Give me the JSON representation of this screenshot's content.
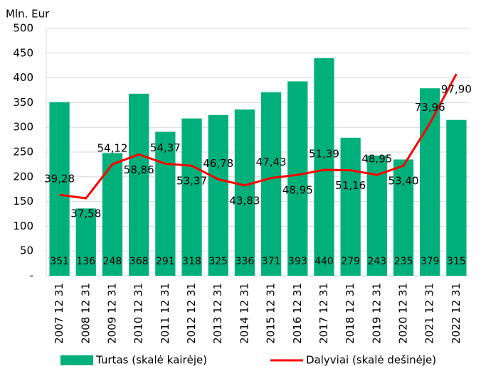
{
  "chart_data": {
    "type": "bar-line",
    "axis_title": "Mln. Eur",
    "categories": [
      "2007 12 31",
      "2008 12 31",
      "2009 12 31",
      "2010 12 31",
      "2011 12 31",
      "2012 12 31",
      "2013 12 31",
      "2014 12 31",
      "2015 12 31",
      "2016 12 31",
      "2017 12 31",
      "2018 12 31",
      "2019 12 31",
      "2020 12 31",
      "2021 12 31",
      "2022 12 31"
    ],
    "series": [
      {
        "name": "Turtas (skalė kairėje)",
        "type": "bar",
        "color": "#00b07b",
        "values": [
          351,
          136,
          248,
          368,
          291,
          318,
          325,
          336,
          371,
          393,
          440,
          279,
          243,
          235,
          379,
          315
        ]
      },
      {
        "name": "Dalyviai (skalė dešinėje)",
        "type": "line",
        "axis": "y2",
        "color": "#ff0000",
        "values": [
          39.28,
          37.58,
          54.12,
          58.86,
          54.37,
          53.37,
          46.78,
          43.83,
          47.43,
          48.95,
          51.39,
          51.16,
          48.95,
          53.4,
          73.96,
          97.9
        ],
        "value_labels": [
          "39,28",
          "37,58",
          "54,12",
          "58,86",
          "54,37",
          "53,37",
          "46,78",
          "43,83",
          "47,43",
          "48,95",
          "51,39",
          "51,16",
          "48,95",
          "53,40",
          "73,96",
          "97,90"
        ]
      }
    ],
    "ylim": [
      0,
      500
    ],
    "yticks": [
      {
        "value": 0,
        "label": "-"
      },
      50,
      100,
      150,
      200,
      250,
      300,
      350,
      400,
      450,
      500
    ],
    "y2lim": [
      0,
      120
    ],
    "grid": true
  }
}
